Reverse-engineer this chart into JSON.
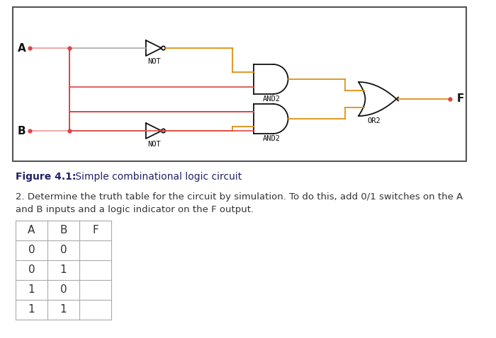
{
  "figure_caption_bold": "Figure 4.1:",
  "figure_caption_rest": " Simple combinational logic circuit",
  "para_text_line1": "2. Determine the truth table for the circuit by simulation. To do this, add 0/1 switches on the A",
  "para_text_line2": "and B inputs and a logic indicator on the F output.",
  "table_headers": [
    "A",
    "B",
    "F"
  ],
  "table_rows": [
    [
      "0",
      "0",
      ""
    ],
    [
      "0",
      "1",
      ""
    ],
    [
      "1",
      "0",
      ""
    ],
    [
      "1",
      "1",
      ""
    ]
  ],
  "bg_color": "#ffffff",
  "box_edge_color": "#555555",
  "wire_red": "#dd4444",
  "wire_orange": "#dd8800",
  "wire_pink": "#ee9999",
  "wire_gray": "#aaaaaa",
  "gate_black": "#111111",
  "text_dark": "#333333",
  "text_blue": "#2244aa",
  "table_line_color": "#aaaaaa"
}
